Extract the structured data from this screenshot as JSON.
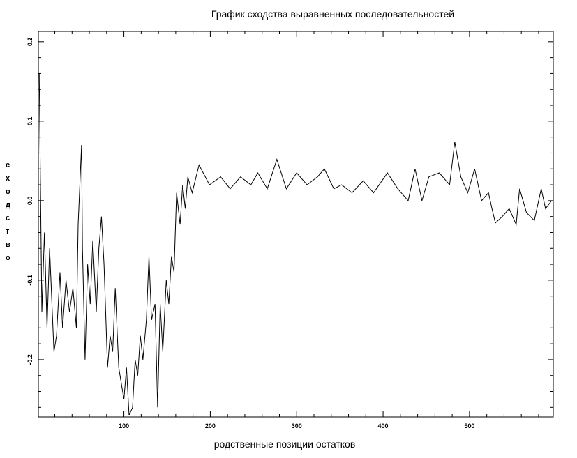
{
  "chart_data": {
    "type": "line",
    "title": "График сходства выравненных последовательностей",
    "xlabel": "родственные позиции остатков",
    "ylabel": "сходство",
    "x": [
      2,
      5,
      8,
      11,
      14,
      19,
      22,
      26,
      29,
      33,
      37,
      41,
      45,
      47,
      51,
      52,
      55,
      58,
      61,
      64,
      68,
      71,
      74,
      77,
      81,
      84,
      87,
      90,
      94,
      97,
      100,
      103,
      106,
      110,
      113,
      116,
      119,
      122,
      126,
      129,
      132,
      136,
      139,
      142,
      145,
      149,
      152,
      155,
      158,
      161,
      165,
      168,
      171,
      174,
      179,
      187,
      199,
      212,
      223,
      235,
      247,
      255,
      266,
      277,
      288,
      300,
      312,
      324,
      332,
      343,
      352,
      364,
      377,
      389,
      405,
      417,
      429,
      437,
      445,
      453,
      465,
      477,
      483,
      490,
      498,
      506,
      514,
      522,
      526,
      530,
      538,
      546,
      554,
      558,
      566,
      575,
      583,
      588,
      595
    ],
    "series": [
      {
        "name": "сходство",
        "color": "#000000",
        "values": [
          0.16,
          -0.14,
          -0.04,
          -0.16,
          -0.06,
          -0.19,
          -0.17,
          -0.09,
          -0.16,
          -0.1,
          -0.14,
          -0.11,
          -0.16,
          -0.03,
          0.07,
          -0.06,
          -0.2,
          -0.08,
          -0.13,
          -0.05,
          -0.14,
          -0.06,
          -0.02,
          -0.08,
          -0.21,
          -0.17,
          -0.19,
          -0.11,
          -0.21,
          -0.23,
          -0.25,
          -0.21,
          -0.27,
          -0.26,
          -0.2,
          -0.22,
          -0.17,
          -0.2,
          -0.15,
          -0.07,
          -0.15,
          -0.13,
          -0.26,
          -0.13,
          -0.19,
          -0.1,
          -0.13,
          -0.07,
          -0.09,
          0.01,
          -0.03,
          0.02,
          -0.01,
          0.03,
          0.01,
          0.045,
          0.02,
          0.03,
          0.015,
          0.03,
          0.02,
          0.035,
          0.015,
          0.052,
          0.015,
          0.035,
          0.02,
          0.03,
          0.04,
          0.015,
          0.02,
          0.01,
          0.025,
          0.01,
          0.035,
          0.015,
          0.0,
          0.04,
          0.0,
          0.03,
          0.035,
          0.02,
          0.074,
          0.03,
          0.01,
          0.04,
          0.0,
          0.01,
          -0.01,
          -0.028,
          -0.02,
          -0.01,
          -0.03,
          0.015,
          -0.015,
          -0.025,
          0.015,
          -0.01,
          0.0
        ]
      }
    ],
    "xlim": [
      1,
      597
    ],
    "ylim": [
      -0.272,
      0.213
    ],
    "xticks": [
      100,
      200,
      300,
      400,
      500
    ],
    "yticks": [
      {
        "value": -0.2,
        "label": "-0.2"
      },
      {
        "value": -0.1,
        "label": "-0.1"
      },
      {
        "value": 0,
        "label": "0.0"
      },
      0.1,
      0.2
    ],
    "xminorticks": [
      20,
      40,
      60,
      80,
      120,
      140,
      160,
      180,
      220,
      240,
      260,
      280,
      320,
      340,
      360,
      380,
      420,
      440,
      460,
      480,
      520,
      540,
      560,
      580
    ],
    "yminorticks": [
      -0.26,
      -0.24,
      -0.22,
      -0.18,
      -0.16,
      -0.14,
      -0.12,
      -0.08,
      -0.06,
      -0.04,
      -0.02,
      0.02,
      0.04,
      0.06,
      0.08,
      0.12,
      0.14,
      0.16,
      0.18
    ]
  }
}
